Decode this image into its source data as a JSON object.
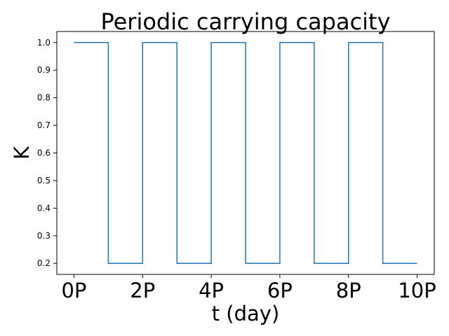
{
  "chart_data": {
    "type": "line",
    "title": "Periodic carrying capacity",
    "xlabel": "t (day)",
    "ylabel": "K",
    "x_unit": "P",
    "xlim": [
      -0.5,
      10.5
    ],
    "ylim": [
      0.16,
      1.04
    ],
    "xticks": [
      0,
      2,
      4,
      6,
      8,
      10
    ],
    "xtick_labels": [
      "0P",
      "2P",
      "4P",
      "6P",
      "8P",
      "10P"
    ],
    "yticks": [
      0.2,
      0.3,
      0.4,
      0.5,
      0.6,
      0.7,
      0.8,
      0.9,
      1.0
    ],
    "ytick_labels": [
      "0.2",
      "0.3",
      "0.4",
      "0.5",
      "0.6",
      "0.7",
      "0.8",
      "0.9",
      "1.0"
    ],
    "grid": false,
    "series": [
      {
        "color": "#1f77b4",
        "step": "post",
        "x": [
          0,
          1,
          2,
          3,
          4,
          5,
          6,
          7,
          8,
          9,
          10
        ],
        "values": [
          1.0,
          0.2,
          1.0,
          0.2,
          1.0,
          0.2,
          1.0,
          0.2,
          1.0,
          0.2,
          0.2
        ]
      }
    ]
  }
}
